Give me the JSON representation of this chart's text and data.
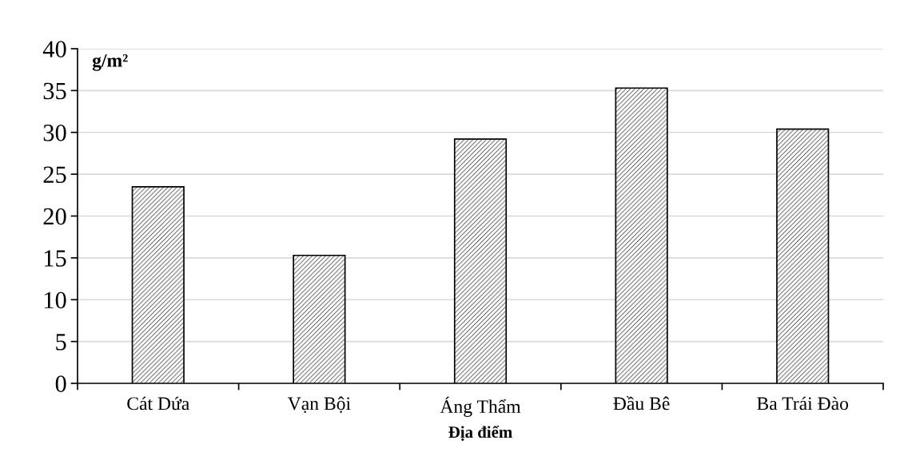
{
  "chart_data": {
    "type": "bar",
    "ylabel": "g/m²",
    "xlabel": "Địa điểm",
    "categories": [
      "Cát Dứa",
      "Vạn Bội",
      "Áng Thẩm",
      "Đầu Bê",
      "Ba Trái Đào"
    ],
    "values": [
      23.5,
      15.3,
      29.2,
      35.3,
      30.4
    ],
    "color": "#000000",
    "ylim": [
      0,
      40
    ],
    "yticks": [
      0,
      5,
      10,
      15,
      20,
      25,
      30,
      35,
      40
    ],
    "grid": "y"
  }
}
